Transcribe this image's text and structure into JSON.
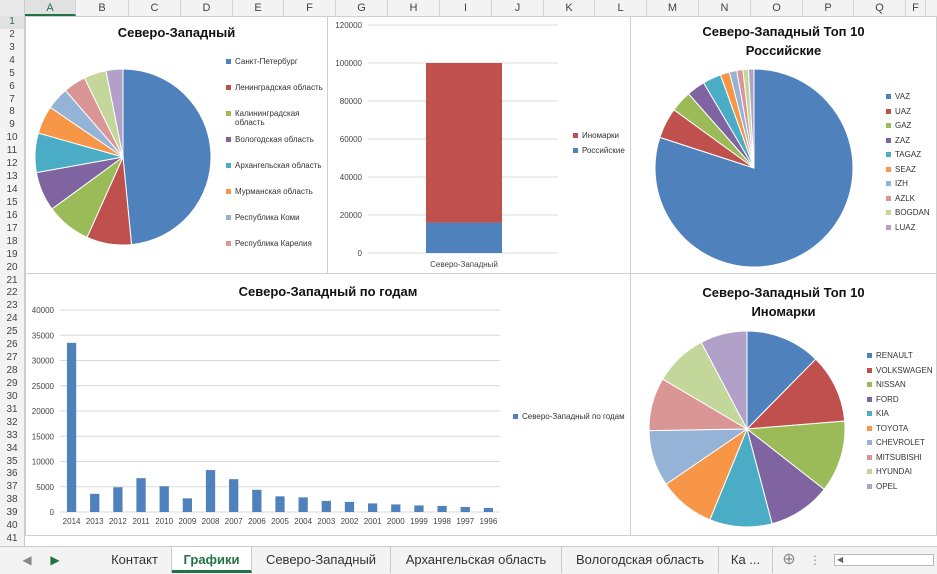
{
  "columns": [
    "A",
    "B",
    "C",
    "D",
    "E",
    "F",
    "G",
    "H",
    "I",
    "J",
    "K",
    "L",
    "M",
    "N",
    "O",
    "P",
    "Q",
    "F"
  ],
  "selected_column": "A",
  "rows": [
    "1",
    "2",
    "3",
    "4",
    "5",
    "6",
    "7",
    "8",
    "9",
    "10",
    "11",
    "12",
    "13",
    "14",
    "15",
    "16",
    "17",
    "18",
    "19",
    "20",
    "21",
    "22",
    "23",
    "24",
    "25",
    "26",
    "27",
    "28",
    "29",
    "30",
    "31",
    "32",
    "33",
    "34",
    "35",
    "36",
    "37",
    "38",
    "39",
    "40",
    "41"
  ],
  "selected_row": "1",
  "colors": {
    "blue": "#4F81BD",
    "red": "#C0504D",
    "green": "#9BBB59",
    "purple": "#8064A2",
    "teal": "#4BACC6",
    "orange": "#F79646",
    "lightblue": "#95B3D7",
    "pink": "#DA9694",
    "lightgreen": "#C4D79B",
    "lavender": "#B1A0C7",
    "accent": "#217346"
  },
  "charts": {
    "regions_pie": {
      "title": "Северо-Западный",
      "chart_data": {
        "type": "pie",
        "title": "Северо-Западный",
        "categories": [
          "Санкт-Петербург",
          "Ленинградская область",
          "Калининградская область",
          "Вологодская область",
          "Архангельская область",
          "Мурманская область",
          "Республика Коми",
          "Республика Карелия",
          "",
          ""
        ],
        "values": [
          47,
          8,
          8,
          7,
          7,
          5,
          4,
          4,
          4,
          3
        ],
        "colors": [
          "#4F81BD",
          "#C0504D",
          "#9BBB59",
          "#8064A2",
          "#4BACC6",
          "#F79646",
          "#95B3D7",
          "#DA9694",
          "#C4D79B",
          "#B1A0C7"
        ]
      },
      "legend": [
        "Санкт-Петербург",
        "Ленинградская область",
        "Калининградская область",
        "Вологодская область",
        "Архангельская область",
        "Мурманская область",
        "Республика Коми",
        "Республика Карелия"
      ]
    },
    "stacked_bar": {
      "chart_data": {
        "type": "bar",
        "stacked": true,
        "categories": [
          "Северо-Западный"
        ],
        "series": [
          {
            "name": "Российские",
            "values": [
              16000
            ],
            "color": "#4F81BD"
          },
          {
            "name": "Иномарки",
            "values": [
              84000
            ],
            "color": "#C0504D"
          }
        ],
        "ylim": [
          0,
          120000
        ],
        "yticks": [
          "0",
          "20000",
          "40000",
          "60000",
          "80000",
          "100000",
          "120000"
        ]
      },
      "legend": [
        "Иномарки",
        "Российские"
      ]
    },
    "russian_top10": {
      "title": "Северо-Западный Топ 10 Российские",
      "title_line1": "Северо-Западный Топ 10",
      "title_line2": "Российские",
      "chart_data": {
        "type": "pie",
        "title": "Северо-Западный Топ 10 Российские",
        "categories": [
          "VAZ",
          "UAZ",
          "GAZ",
          "ZAZ",
          "TAGAZ",
          "SEAZ",
          "IZH",
          "AZLK",
          "BOGDAN",
          "LUAZ"
        ],
        "values": [
          80,
          5,
          3.5,
          3,
          3,
          1.5,
          1.2,
          1,
          0.9,
          0.9
        ],
        "colors": [
          "#4F81BD",
          "#C0504D",
          "#9BBB59",
          "#8064A2",
          "#4BACC6",
          "#F79646",
          "#95B3D7",
          "#DA9694",
          "#C4D79B",
          "#B1A0C7"
        ]
      }
    },
    "years_bar": {
      "title": "Северо-Западный по годам",
      "chart_data": {
        "type": "bar",
        "title": "Северо-Западный по годам",
        "categories": [
          "2014",
          "2013",
          "2012",
          "2011",
          "2010",
          "2009",
          "2008",
          "2007",
          "2006",
          "2005",
          "2004",
          "2003",
          "2002",
          "2001",
          "2000",
          "1999",
          "1998",
          "1997",
          "1996"
        ],
        "series": [
          {
            "name": "Северо-Западный по годам",
            "values": [
              33500,
              3600,
              4900,
              6700,
              5100,
              2700,
              8300,
              6500,
              4400,
              3100,
              2900,
              2200,
              2000,
              1700,
              1500,
              1300,
              1200,
              1000,
              800
            ],
            "color": "#4F81BD"
          }
        ],
        "ylim": [
          0,
          40000
        ],
        "yticks": [
          "0",
          "5000",
          "10000",
          "15000",
          "20000",
          "25000",
          "30000",
          "35000",
          "40000"
        ]
      }
    },
    "foreign_top10": {
      "title": "Северо-Западный Топ 10 Иномарки",
      "title_line1": "Северо-Западный Топ 10",
      "title_line2": "Иномарки",
      "chart_data": {
        "type": "pie",
        "title": "Северо-Западный Топ 10 Иномарки",
        "categories": [
          "RENAULT",
          "VOLKSWAGEN",
          "NISSAN",
          "FORD",
          "KIA",
          "TOYOTA",
          "CHEVROLET",
          "MITSUBISHI",
          "HYUNDAI",
          "OPEL"
        ],
        "values": [
          12,
          11,
          11.5,
          10,
          10,
          9,
          9,
          8.5,
          8.5,
          7.5
        ],
        "colors": [
          "#4F81BD",
          "#C0504D",
          "#9BBB59",
          "#8064A2",
          "#4BACC6",
          "#F79646",
          "#95B3D7",
          "#DA9694",
          "#C4D79B",
          "#B1A0C7"
        ]
      }
    }
  },
  "tabs": {
    "items": [
      "Контакт",
      "Графики",
      "Северо-Западный",
      "Архангельская область",
      "Вологодская область",
      "Ка ..."
    ],
    "active": "Графики",
    "add_symbol": "⊕",
    "menu_symbol": "⋮"
  }
}
